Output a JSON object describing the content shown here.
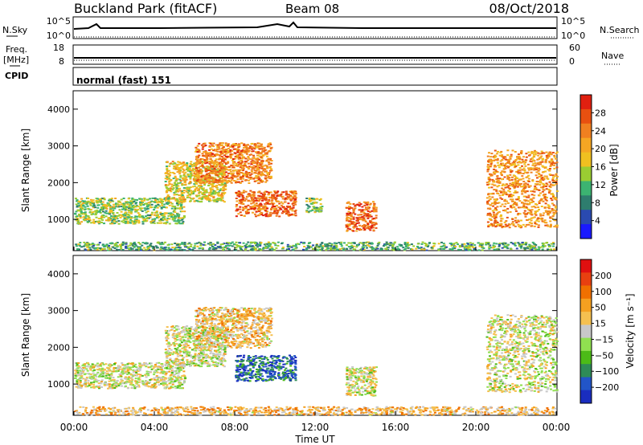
{
  "header": {
    "station": "Buckland Park (fitACF)",
    "beam": "Beam 08",
    "date": "08/Oct/2018"
  },
  "strips": {
    "nsky_label": "N.Sky",
    "nsky_ticks": [
      "10^5",
      "10^0"
    ],
    "nsearch_label": "N.Search",
    "nsearch_ticks": [
      "10^5",
      "10^0"
    ],
    "freq_label": "Freq.",
    "freq_unit": "[MHz]",
    "freq_ticks": [
      "18",
      "8"
    ],
    "nave_label": "Nave",
    "nave_ticks": [
      "60",
      "0"
    ],
    "cpid_label": "CPID",
    "cpid_value": "normal (fast) 151"
  },
  "chart_data": [
    {
      "type": "heatmap",
      "name": "power",
      "ylabel": "Slant Range [km]",
      "ylim": [
        150,
        4500
      ],
      "yticks": [
        1000,
        2000,
        3000,
        4000
      ],
      "xlim_hours": [
        0,
        24
      ],
      "xticks": [
        "00:00",
        "04:00",
        "08:00",
        "12:00",
        "16:00",
        "20:00",
        "00:00"
      ],
      "colorbar": {
        "label": "Power [dB]",
        "ticks": [
          "4",
          "8",
          "12",
          "16",
          "20",
          "24",
          "28"
        ],
        "colors": [
          "#1a1aff",
          "#2a4ab0",
          "#2e7d6e",
          "#3cb371",
          "#9acd32",
          "#f0c020",
          "#f5a623",
          "#f08020",
          "#e85010",
          "#e02010"
        ]
      },
      "regions": [
        {
          "t0": 0.0,
          "t1": 23.9,
          "r0": 180,
          "r1": 400,
          "level": 0.35
        },
        {
          "t0": 0.0,
          "t1": 5.5,
          "r0": 900,
          "r1": 1600,
          "level": 0.45
        },
        {
          "t0": 4.5,
          "t1": 7.5,
          "r0": 1500,
          "r1": 2600,
          "level": 0.55
        },
        {
          "t0": 6.0,
          "t1": 9.8,
          "r0": 2000,
          "r1": 3100,
          "level": 0.75
        },
        {
          "t0": 8.0,
          "t1": 11.0,
          "r0": 1100,
          "r1": 1800,
          "level": 0.8
        },
        {
          "t0": 11.5,
          "t1": 12.3,
          "r0": 1200,
          "r1": 1600,
          "level": 0.4
        },
        {
          "t0": 13.5,
          "t1": 15.0,
          "r0": 700,
          "r1": 1500,
          "level": 0.8
        },
        {
          "t0": 20.5,
          "t1": 24.0,
          "r0": 800,
          "r1": 2900,
          "level": 0.7
        }
      ]
    },
    {
      "type": "heatmap",
      "name": "velocity",
      "ylabel": "Slant Range [km]",
      "ylim": [
        150,
        4500
      ],
      "yticks": [
        1000,
        2000,
        3000,
        4000
      ],
      "xlim_hours": [
        0,
        24
      ],
      "xticks": [
        "00:00",
        "04:00",
        "08:00",
        "12:00",
        "16:00",
        "20:00",
        "00:00"
      ],
      "xlabel": "Time UT",
      "colorbar": {
        "label": "Velocity [m s⁻¹]",
        "ticks": [
          "200",
          "100",
          "50",
          "15",
          "−15",
          "−50",
          "−100",
          "−200"
        ],
        "colors": [
          "#1a2dbf",
          "#2255c8",
          "#2e8b57",
          "#4cbb17",
          "#90e050",
          "#c8c8c8",
          "#f5c050",
          "#f5a020",
          "#f07000",
          "#e84010",
          "#e01010"
        ]
      },
      "regions": [
        {
          "t0": 0.0,
          "t1": 23.9,
          "r0": 180,
          "r1": 400,
          "level": 0.62
        },
        {
          "t0": 0.0,
          "t1": 5.5,
          "r0": 900,
          "r1": 1600,
          "level": 0.5
        },
        {
          "t0": 4.5,
          "t1": 7.5,
          "r0": 1500,
          "r1": 2600,
          "level": 0.5
        },
        {
          "t0": 6.0,
          "t1": 9.8,
          "r0": 2000,
          "r1": 3100,
          "level": 0.6
        },
        {
          "t0": 8.0,
          "t1": 11.0,
          "r0": 1100,
          "r1": 1800,
          "level": 0.15
        },
        {
          "t0": 13.5,
          "t1": 15.0,
          "r0": 700,
          "r1": 1500,
          "level": 0.5
        },
        {
          "t0": 20.5,
          "t1": 24.0,
          "r0": 800,
          "r1": 2900,
          "level": 0.5
        }
      ]
    }
  ]
}
